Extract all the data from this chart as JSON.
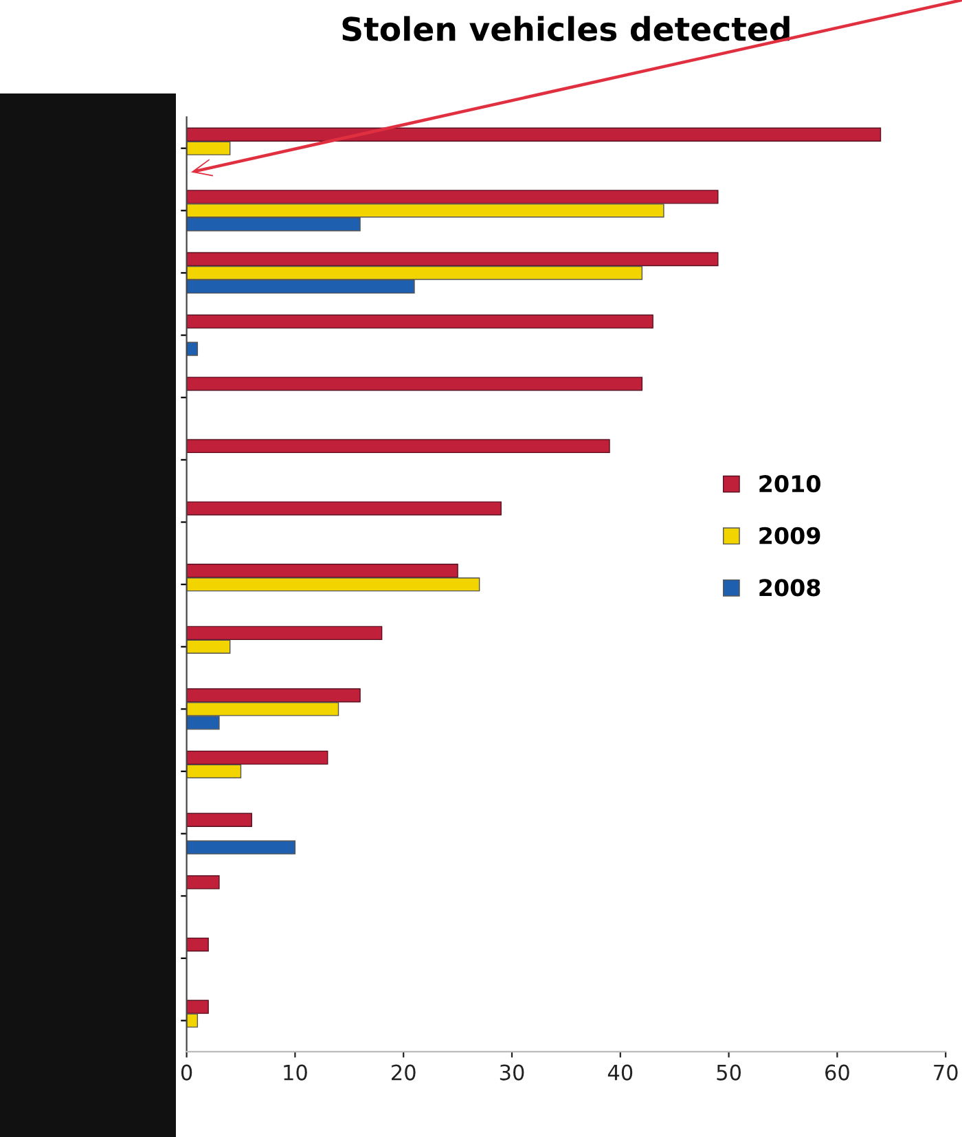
{
  "chart_data": {
    "type": "bar",
    "orientation": "horizontal",
    "title": "Stolen vehicles detected",
    "categories": [
      null,
      null,
      null,
      null,
      null,
      null,
      null,
      null,
      null,
      null,
      null,
      null,
      null,
      null,
      null
    ],
    "series": [
      {
        "name": "2010",
        "color": "#c0203a",
        "values": [
          64,
          49,
          49,
          43,
          42,
          39,
          29,
          25,
          18,
          16,
          13,
          6,
          3,
          2,
          2
        ]
      },
      {
        "name": "2009",
        "color": "#f2d400",
        "values": [
          4,
          44,
          42,
          null,
          null,
          null,
          null,
          27,
          4,
          14,
          5,
          null,
          null,
          null,
          1
        ]
      },
      {
        "name": "2008",
        "color": "#1f5fb0",
        "values": [
          null,
          16,
          21,
          1,
          null,
          null,
          null,
          null,
          null,
          3,
          null,
          10,
          null,
          null,
          null
        ]
      }
    ],
    "xlim": [
      0,
      70
    ],
    "xticks": [
      0,
      10,
      20,
      30,
      40,
      50,
      60,
      70
    ],
    "tick_labels": "x",
    "grid": false,
    "legend": "right"
  }
}
